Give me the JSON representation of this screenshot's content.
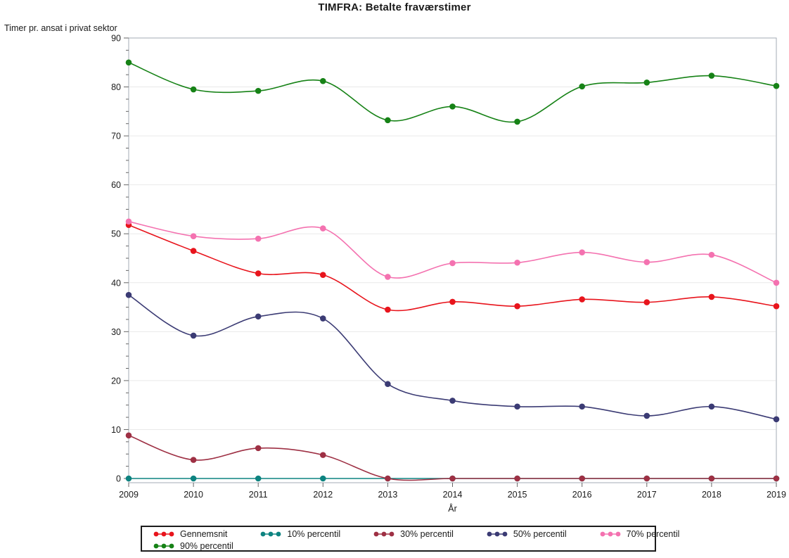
{
  "title": "TIMFRA: Betalte fraværstimer",
  "chart_data": {
    "type": "line",
    "title": "TIMFRA: Betalte fraværstimer",
    "xlabel": "År",
    "ylabel": "Timer pr. ansat i privat sektor",
    "x": [
      2009,
      2010,
      2011,
      2012,
      2013,
      2014,
      2015,
      2016,
      2017,
      2018,
      2019
    ],
    "ylim": [
      0,
      90
    ],
    "yticks": [
      0,
      10,
      20,
      30,
      40,
      50,
      60,
      70,
      80,
      90
    ],
    "ytick_minor_step": 2.5,
    "grid": true,
    "legend_position": "bottom",
    "marker": "filled-circle",
    "curve": "smooth-spline",
    "series": [
      {
        "name": "Gennemsnit",
        "color": "#e8141c",
        "values": [
          51.8,
          46.5,
          41.9,
          41.6,
          34.5,
          36.1,
          35.2,
          36.6,
          36.0,
          37.1,
          35.2
        ]
      },
      {
        "name": "10% percentil",
        "color": "#0d8380",
        "values": [
          0,
          0,
          0,
          0,
          0,
          0,
          0,
          0,
          0,
          0,
          0
        ]
      },
      {
        "name": "30% percentil",
        "color": "#9e3044",
        "values": [
          8.8,
          3.8,
          6.2,
          4.8,
          0,
          0,
          0,
          0,
          0,
          0,
          0
        ]
      },
      {
        "name": "50% percentil",
        "color": "#3b3b74",
        "values": [
          37.5,
          29.2,
          33.1,
          32.7,
          19.3,
          15.9,
          14.7,
          14.7,
          12.8,
          14.7,
          12.1
        ]
      },
      {
        "name": "70% percentil",
        "color": "#f472b0",
        "values": [
          52.5,
          49.5,
          49.0,
          51.1,
          41.2,
          44.0,
          44.1,
          46.2,
          44.2,
          45.7,
          40.0
        ]
      },
      {
        "name": "90% percentil",
        "color": "#168216",
        "values": [
          85.0,
          79.5,
          79.2,
          81.2,
          73.2,
          76.0,
          72.9,
          80.1,
          80.9,
          82.3,
          80.2
        ]
      }
    ],
    "style": {
      "grid_color": "#e9e9e9",
      "frame_color": "#a3abb5",
      "tick_color": "#666666",
      "text_color": "#1a1a1a"
    }
  }
}
